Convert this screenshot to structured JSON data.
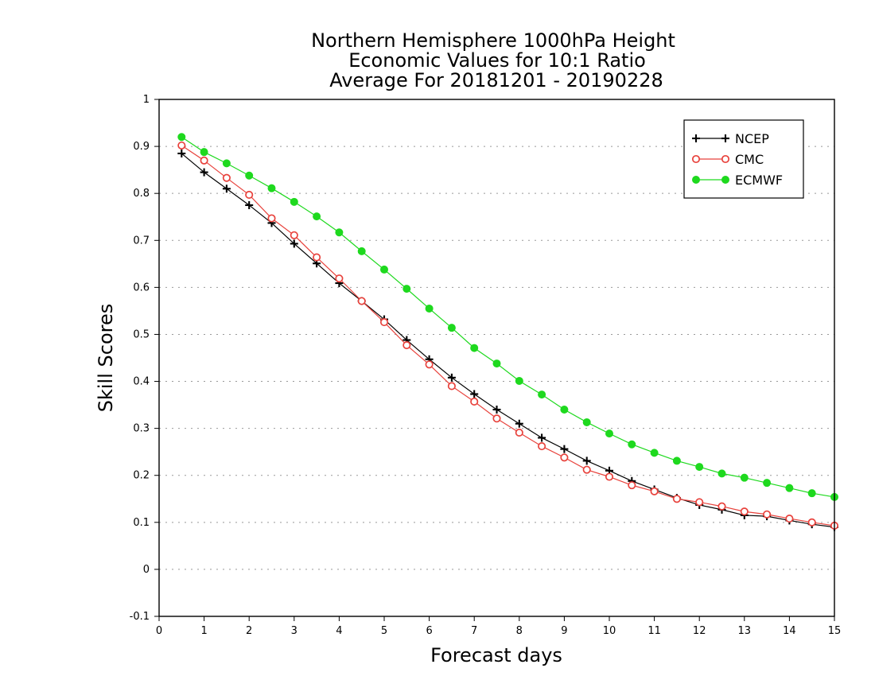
{
  "chart_data": {
    "type": "line",
    "title": [
      "Northern Hemisphere 1000hPa Height",
      "Economic Values for 10:1 Ratio",
      "Average For 20181201 - 20190228"
    ],
    "xlabel": "Forecast days",
    "ylabel": "Skill Scores",
    "xlim": [
      0,
      15
    ],
    "ylim": [
      -0.1,
      1
    ],
    "xticks": [
      0,
      1,
      2,
      3,
      4,
      5,
      6,
      7,
      8,
      9,
      10,
      11,
      12,
      13,
      14,
      15
    ],
    "xtick_labels": [
      "0",
      "1",
      "2",
      "3",
      "4",
      "5",
      "6",
      "7",
      "8",
      "9",
      "10",
      "11",
      "12",
      "13",
      "14",
      "15"
    ],
    "yticks": [
      -0.1,
      0,
      0.1,
      0.2,
      0.3,
      0.4,
      0.5,
      0.6,
      0.7,
      0.8,
      0.9,
      1
    ],
    "ytick_labels": [
      "-0.1",
      "0",
      "0.1",
      "0.2",
      "0.3",
      "0.4",
      "0.5",
      "0.6",
      "0.7",
      "0.8",
      "0.9",
      "1"
    ],
    "grid": "horizontal-dotted",
    "legend_position": "top-right",
    "x": [
      0.5,
      1,
      1.5,
      2,
      2.5,
      3,
      3.5,
      4,
      4.5,
      5,
      5.5,
      6,
      6.5,
      7,
      7.5,
      8,
      8.5,
      9,
      9.5,
      10,
      10.5,
      11,
      11.5,
      12,
      12.5,
      13,
      13.5,
      14,
      14.5,
      15
    ],
    "series": [
      {
        "name": "NCEP",
        "color": "#000000",
        "marker": "plus",
        "values": [
          0.885,
          0.845,
          0.81,
          0.775,
          0.737,
          0.693,
          0.651,
          0.609,
          0.571,
          0.532,
          0.488,
          0.447,
          0.408,
          0.373,
          0.34,
          0.31,
          0.28,
          0.256,
          0.231,
          0.21,
          0.188,
          0.17,
          0.152,
          0.137,
          0.127,
          0.115,
          0.113,
          0.104,
          0.096,
          0.09
        ]
      },
      {
        "name": "CMC",
        "color": "#e8423c",
        "marker": "open-circle",
        "values": [
          0.902,
          0.87,
          0.833,
          0.797,
          0.747,
          0.711,
          0.664,
          0.619,
          0.571,
          0.526,
          0.477,
          0.436,
          0.39,
          0.357,
          0.321,
          0.291,
          0.262,
          0.238,
          0.212,
          0.197,
          0.179,
          0.166,
          0.15,
          0.143,
          0.134,
          0.123,
          0.117,
          0.108,
          0.1,
          0.093
        ]
      },
      {
        "name": "ECMWF",
        "color": "#1ed91e",
        "marker": "filled-circle",
        "values": [
          0.92,
          0.888,
          0.864,
          0.838,
          0.811,
          0.782,
          0.751,
          0.717,
          0.677,
          0.638,
          0.597,
          0.555,
          0.514,
          0.471,
          0.438,
          0.401,
          0.372,
          0.34,
          0.313,
          0.289,
          0.266,
          0.248,
          0.231,
          0.218,
          0.204,
          0.195,
          0.184,
          0.173,
          0.162,
          0.154
        ]
      }
    ]
  }
}
